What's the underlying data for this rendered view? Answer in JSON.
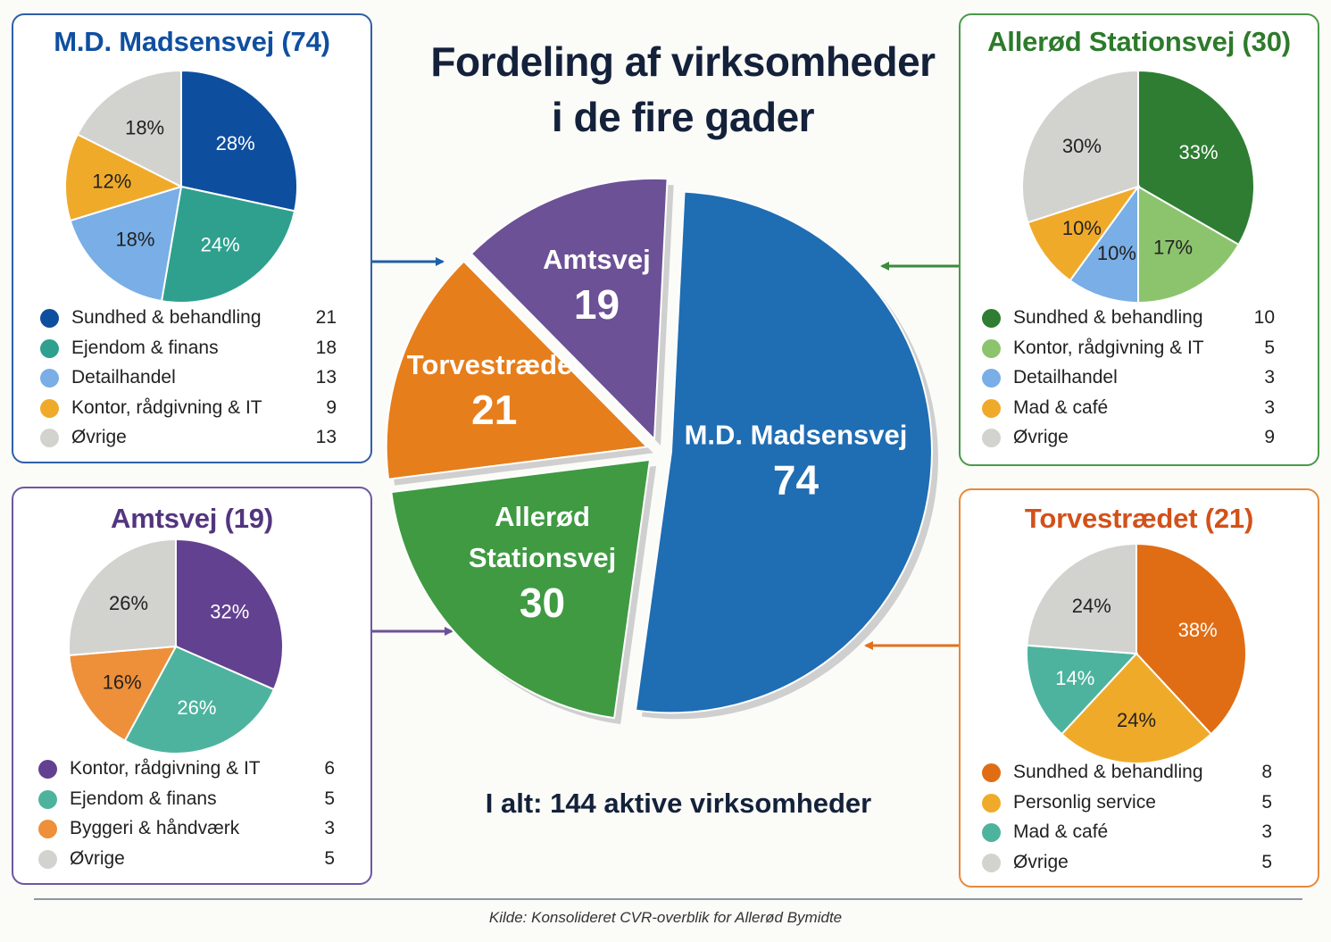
{
  "title_line1": "Fordeling af virksomheder",
  "title_line2": "i de fire gader",
  "total": "I alt: 144 aktive virksomheder",
  "source": "Kilde:  Konsolideret CVR-overblik for Allerød Bymidte",
  "chart_data": [
    {
      "type": "pie",
      "id": "main",
      "title": "Fordeling af virksomheder i de fire gader",
      "slices": [
        {
          "label": "M.D. Madsensvej",
          "value": 74,
          "color": "#1f6db3"
        },
        {
          "label": "Allerød Stationsvej",
          "value": 30,
          "color": "#3f9a42"
        },
        {
          "label": "Torvestrædet",
          "value": 21,
          "color": "#e67e1c"
        },
        {
          "label": "Amtsvej",
          "value": 19,
          "color": "#6c5196"
        }
      ]
    },
    {
      "type": "pie",
      "id": "madsensvej",
      "title": "M.D. Madsensvej (74)",
      "title_color": "#0f4fa0",
      "border_color": "#2f5fa6",
      "slices": [
        {
          "label": "Sundhed & behandling",
          "value": 21,
          "pct": "28%",
          "color": "#0e4e9e"
        },
        {
          "label": "Ejendom & finans",
          "value": 18,
          "pct": "24%",
          "color": "#2fa08e"
        },
        {
          "label": "Detailhandel",
          "value": 13,
          "pct": "18%",
          "color": "#79aee6"
        },
        {
          "label": "Kontor, rådgivning & IT",
          "value": 9,
          "pct": "12%",
          "color": "#f0aa2a"
        },
        {
          "label": "Øvrige",
          "value": 13,
          "pct": "18%",
          "color": "#d2d2cf"
        }
      ]
    },
    {
      "type": "pie",
      "id": "stationsvej",
      "title": "Allerød Stationsvej (30)",
      "title_color": "#2d7a2b",
      "border_color": "#4a9a48",
      "slices": [
        {
          "label": "Sundhed & behandling",
          "value": 10,
          "pct": "33%",
          "color": "#2e7d32"
        },
        {
          "label": "Kontor, rådgivning & IT",
          "value": 5,
          "pct": "17%",
          "color": "#8cc46d"
        },
        {
          "label": "Detailhandel",
          "value": 3,
          "pct": "10%",
          "color": "#79aee6"
        },
        {
          "label": "Mad & café",
          "value": 3,
          "pct": "10%",
          "color": "#f0aa2a"
        },
        {
          "label": "Øvrige",
          "value": 9,
          "pct": "30%",
          "color": "#d2d2cf"
        }
      ]
    },
    {
      "type": "pie",
      "id": "amtsvej",
      "title": "Amtsvej (19)",
      "title_color": "#53357f",
      "border_color": "#6f56a0",
      "slices": [
        {
          "label": "Kontor, rådgivning & IT",
          "value": 6,
          "pct": "32%",
          "color": "#624190"
        },
        {
          "label": "Ejendom & finans",
          "value": 5,
          "pct": "26%",
          "color": "#4db39e"
        },
        {
          "label": "Byggeri & håndværk",
          "value": 3,
          "pct": "16%",
          "color": "#ee8f3a"
        },
        {
          "label": "Øvrige",
          "value": 5,
          "pct": "26%",
          "color": "#d2d2cf"
        }
      ]
    },
    {
      "type": "pie",
      "id": "torvestraedet",
      "title": "Torvestrædet (21)",
      "title_color": "#d2511a",
      "border_color": "#e58a3c",
      "slices": [
        {
          "label": "Sundhed & behandling",
          "value": 8,
          "pct": "38%",
          "color": "#e06d14"
        },
        {
          "label": "Personlig service",
          "value": 5,
          "pct": "24%",
          "color": "#f0aa2a"
        },
        {
          "label": "Mad & café",
          "value": 3,
          "pct": "14%",
          "color": "#4db39e"
        },
        {
          "label": "Øvrige",
          "value": 5,
          "pct": "24%",
          "color": "#d2d2cf"
        }
      ]
    }
  ]
}
